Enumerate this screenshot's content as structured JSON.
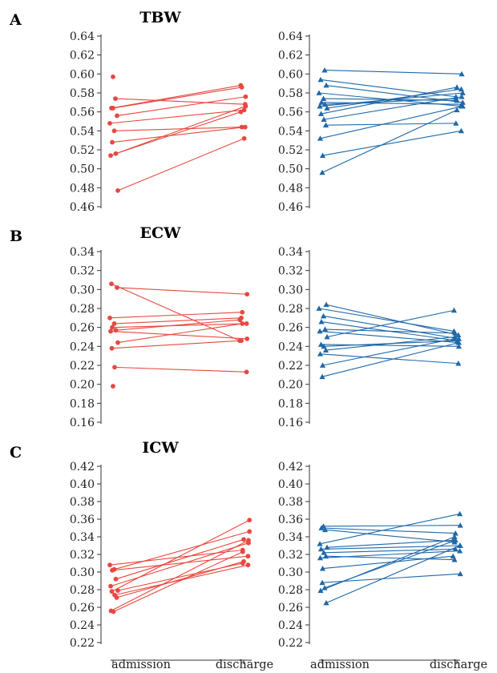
{
  "colors": {
    "red_series": "#e8483f",
    "blue_series": "#1f68a8"
  },
  "categories": [
    "admission",
    "discharge"
  ],
  "chart_data": [
    {
      "type": "line",
      "panel": "A",
      "title": "TBW",
      "group": "red",
      "marker": "circle",
      "categories": [
        "admission",
        "discharge"
      ],
      "ylim": [
        0.46,
        0.64
      ],
      "yticks": [
        "0.46",
        "0.48",
        "0.50",
        "0.52",
        "0.54",
        "0.56",
        "0.58",
        "0.60",
        "0.62",
        "0.64"
      ],
      "isolated_points": [
        [
          0,
          0.597
        ]
      ],
      "series": [
        {
          "values": [
            0.564,
            0.586
          ]
        },
        {
          "values": [
            0.574,
            0.568
          ]
        },
        {
          "values": [
            0.564,
            0.588
          ]
        },
        {
          "values": [
            0.556,
            0.576
          ]
        },
        {
          "values": [
            0.548,
            0.562
          ]
        },
        {
          "values": [
            0.54,
            0.544
          ]
        },
        {
          "values": [
            0.528,
            0.544
          ]
        },
        {
          "values": [
            0.516,
            0.56
          ]
        },
        {
          "values": [
            0.514,
            0.566
          ]
        },
        {
          "values": [
            0.477,
            0.532
          ]
        }
      ]
    },
    {
      "type": "line",
      "panel": "A",
      "title": "",
      "group": "blue",
      "marker": "triangle",
      "categories": [
        "admission",
        "discharge"
      ],
      "ylim": [
        0.46,
        0.64
      ],
      "yticks": [
        "0.46",
        "0.48",
        "0.50",
        "0.52",
        "0.54",
        "0.56",
        "0.58",
        "0.60",
        "0.62",
        "0.64"
      ],
      "isolated_points": [],
      "series": [
        {
          "values": [
            0.604,
            0.6
          ]
        },
        {
          "values": [
            0.594,
            0.576
          ]
        },
        {
          "values": [
            0.588,
            0.57
          ]
        },
        {
          "values": [
            0.58,
            0.566
          ]
        },
        {
          "values": [
            0.574,
            0.572
          ]
        },
        {
          "values": [
            0.57,
            0.568
          ]
        },
        {
          "values": [
            0.568,
            0.574
          ]
        },
        {
          "values": [
            0.566,
            0.58
          ]
        },
        {
          "values": [
            0.564,
            0.584
          ]
        },
        {
          "values": [
            0.558,
            0.586
          ]
        },
        {
          "values": [
            0.552,
            0.576
          ]
        },
        {
          "values": [
            0.546,
            0.548
          ]
        },
        {
          "values": [
            0.532,
            0.566
          ]
        },
        {
          "values": [
            0.514,
            0.54
          ]
        },
        {
          "values": [
            0.496,
            0.562
          ]
        }
      ]
    },
    {
      "type": "line",
      "panel": "B",
      "title": "ECW",
      "group": "red",
      "marker": "circle",
      "categories": [
        "admission",
        "discharge"
      ],
      "ylim": [
        0.16,
        0.34
      ],
      "yticks": [
        "0.16",
        "0.18",
        "0.20",
        "0.22",
        "0.24",
        "0.26",
        "0.28",
        "0.30",
        "0.32",
        "0.34"
      ],
      "isolated_points": [
        [
          0,
          0.198
        ]
      ],
      "series": [
        {
          "values": [
            0.306,
            0.246
          ]
        },
        {
          "values": [
            0.302,
            0.295
          ]
        },
        {
          "values": [
            0.27,
            0.276
          ]
        },
        {
          "values": [
            0.264,
            0.27
          ]
        },
        {
          "values": [
            0.26,
            0.264
          ]
        },
        {
          "values": [
            0.257,
            0.268
          ]
        },
        {
          "values": [
            0.256,
            0.248
          ]
        },
        {
          "values": [
            0.244,
            0.264
          ]
        },
        {
          "values": [
            0.238,
            0.246
          ]
        },
        {
          "values": [
            0.218,
            0.213
          ]
        }
      ]
    },
    {
      "type": "line",
      "panel": "B",
      "title": "",
      "group": "blue",
      "marker": "triangle",
      "categories": [
        "admission",
        "discharge"
      ],
      "ylim": [
        0.16,
        0.34
      ],
      "yticks": [
        "0.16",
        "0.18",
        "0.20",
        "0.22",
        "0.24",
        "0.26",
        "0.28",
        "0.30",
        "0.32",
        "0.34"
      ],
      "isolated_points": [],
      "series": [
        {
          "values": [
            0.284,
            0.252
          ]
        },
        {
          "values": [
            0.28,
            0.256
          ]
        },
        {
          "values": [
            0.272,
            0.248
          ]
        },
        {
          "values": [
            0.266,
            0.246
          ]
        },
        {
          "values": [
            0.258,
            0.254
          ]
        },
        {
          "values": [
            0.256,
            0.244
          ]
        },
        {
          "values": [
            0.25,
            0.278
          ]
        },
        {
          "values": [
            0.242,
            0.24
          ]
        },
        {
          "values": [
            0.24,
            0.246
          ]
        },
        {
          "values": [
            0.236,
            0.25
          ]
        },
        {
          "values": [
            0.232,
            0.222
          ]
        },
        {
          "values": [
            0.22,
            0.248
          ]
        },
        {
          "values": [
            0.208,
            0.244
          ]
        }
      ]
    },
    {
      "type": "line",
      "panel": "C",
      "title": "ICW",
      "group": "red",
      "marker": "circle",
      "categories": [
        "admission",
        "discharge"
      ],
      "ylim": [
        0.22,
        0.42
      ],
      "yticks": [
        "0.22",
        "0.24",
        "0.26",
        "0.28",
        "0.30",
        "0.32",
        "0.34",
        "0.36",
        "0.38",
        "0.40",
        "0.42"
      ],
      "isolated_points": [],
      "series": [
        {
          "values": [
            0.308,
            0.325
          ]
        },
        {
          "values": [
            0.303,
            0.346
          ]
        },
        {
          "values": [
            0.302,
            0.318
          ]
        },
        {
          "values": [
            0.292,
            0.337
          ]
        },
        {
          "values": [
            0.284,
            0.333
          ]
        },
        {
          "values": [
            0.279,
            0.31
          ]
        },
        {
          "values": [
            0.278,
            0.359
          ]
        },
        {
          "values": [
            0.274,
            0.308
          ]
        },
        {
          "values": [
            0.271,
            0.312
          ]
        },
        {
          "values": [
            0.256,
            0.336
          ]
        },
        {
          "values": [
            0.255,
            0.323
          ]
        }
      ]
    },
    {
      "type": "line",
      "panel": "C",
      "title": "",
      "group": "blue",
      "marker": "triangle",
      "categories": [
        "admission",
        "discharge"
      ],
      "ylim": [
        0.22,
        0.42
      ],
      "yticks": [
        "0.22",
        "0.24",
        "0.26",
        "0.28",
        "0.30",
        "0.32",
        "0.34",
        "0.36",
        "0.38",
        "0.40",
        "0.42"
      ],
      "isolated_points": [],
      "series": [
        {
          "values": [
            0.352,
            0.353
          ]
        },
        {
          "values": [
            0.35,
            0.344
          ]
        },
        {
          "values": [
            0.348,
            0.334
          ]
        },
        {
          "values": [
            0.332,
            0.366
          ]
        },
        {
          "values": [
            0.328,
            0.336
          ]
        },
        {
          "values": [
            0.326,
            0.33
          ]
        },
        {
          "values": [
            0.322,
            0.326
          ]
        },
        {
          "values": [
            0.318,
            0.314
          ]
        },
        {
          "values": [
            0.316,
            0.324
          ]
        },
        {
          "values": [
            0.304,
            0.318
          ]
        },
        {
          "values": [
            0.288,
            0.298
          ]
        },
        {
          "values": [
            0.282,
            0.336
          ]
        },
        {
          "values": [
            0.279,
            0.34
          ]
        },
        {
          "values": [
            0.265,
            0.33
          ]
        }
      ]
    }
  ]
}
